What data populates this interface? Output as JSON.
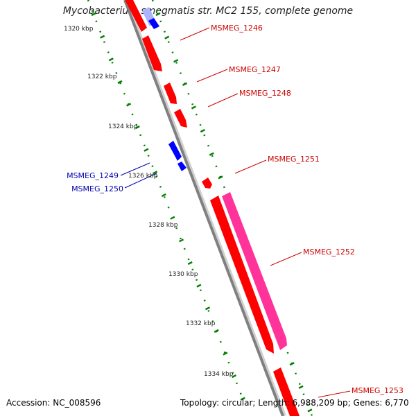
{
  "title": "Mycobacterium smegmatis str. MC2 155, complete genome",
  "footer": {
    "accession": "Accession: NC_008596",
    "topology": "Topology: circular",
    "length": "Length: 6,988,209 bp",
    "genes": "Genes: 6,770"
  },
  "colors": {
    "forward_gene": "#ff0000",
    "reverse_gene": "#0000ff",
    "forward_label": "#cc0000",
    "reverse_label": "#0000aa",
    "orf": "#ff3399",
    "backbone": "#808080",
    "ticks": "#008000"
  },
  "scale_ticks": [
    {
      "label": "1320 kbp"
    },
    {
      "label": "1322 kbp"
    },
    {
      "label": "1324 kbp"
    },
    {
      "label": "1326 kbp"
    },
    {
      "label": "1328 kbp"
    },
    {
      "label": "1330 kbp"
    },
    {
      "label": "1332 kbp"
    },
    {
      "label": "1334 kbp"
    }
  ],
  "genes": [
    {
      "name": "MSMEG_1246",
      "strand": "forward"
    },
    {
      "name": "MSMEG_1247",
      "strand": "forward"
    },
    {
      "name": "MSMEG_1248",
      "strand": "forward"
    },
    {
      "name": "MSMEG_1249",
      "strand": "reverse"
    },
    {
      "name": "MSMEG_1250",
      "strand": "reverse"
    },
    {
      "name": "MSMEG_1251",
      "strand": "forward"
    },
    {
      "name": "MSMEG_1252",
      "strand": "forward"
    },
    {
      "name": "MSMEG_1253",
      "strand": "forward"
    }
  ]
}
